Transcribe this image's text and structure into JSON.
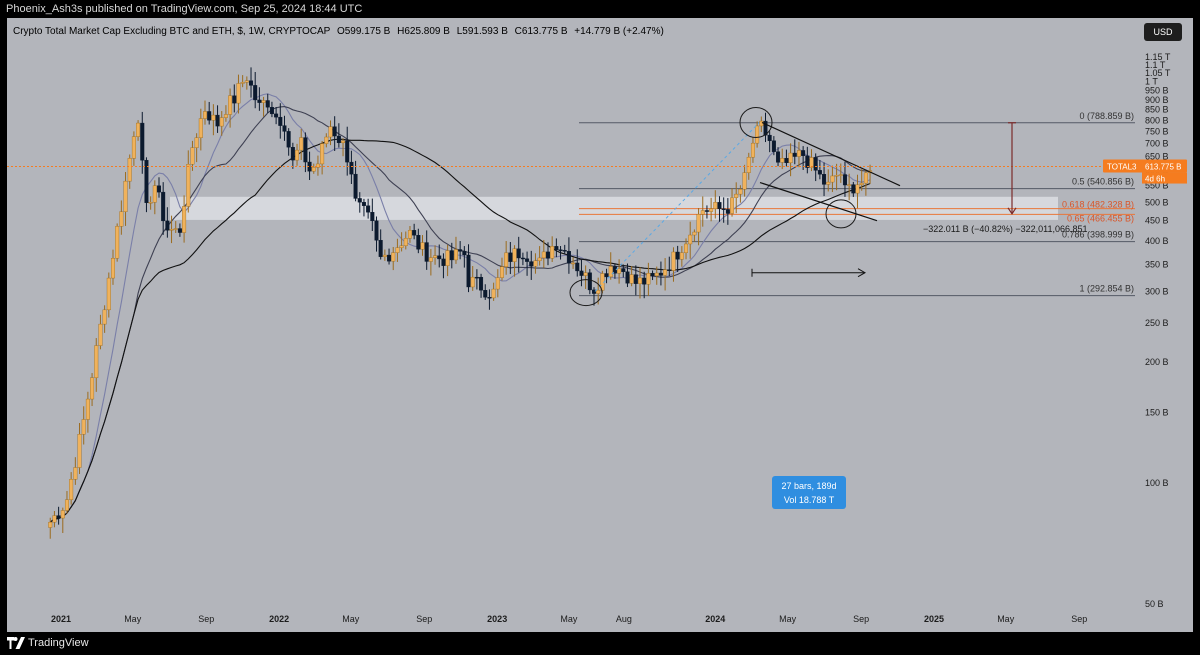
{
  "header": {
    "publish_line": "Phoenix_Ash3s published on TradingView.com, Sep 25, 2024 18:44 UTC"
  },
  "symbol": {
    "title": "Crypto Total Market Cap Excluding BTC and ETH, $, 1W, CRYPTOCAP",
    "open": "O599.175 B",
    "high": "H625.809 B",
    "low": "L591.593 B",
    "close": "C613.775 B",
    "change": "+14.779 B (+2.47%)"
  },
  "currency_button": "USD",
  "footer": {
    "brand": "TradingView"
  },
  "colors": {
    "background": "#b3b5bb",
    "bull": "#f0b25c",
    "bear": "#0c1a2e",
    "price_line": "#f57c1f",
    "measure_box": "#2f8ee0"
  },
  "chart_data": {
    "type": "candlestick",
    "title": "Crypto Total Market Cap Excluding BTC and ETH, $, 1W, CRYPTOCAP",
    "y_scale": "log",
    "ylim": [
      "50 B",
      "1.15 T"
    ],
    "y_tick_labels": [
      "1.15 T",
      "1.1 T",
      "1.05 T",
      "1 T",
      "950 B",
      "900 B",
      "850 B",
      "800 B",
      "750 B",
      "700 B",
      "650 B",
      "600 B",
      "550 B",
      "500 B",
      "450 B",
      "400 B",
      "350 B",
      "300 B",
      "250 B",
      "200 B",
      "150 B",
      "100 B",
      "50 B"
    ],
    "y_tick_values": [
      1150,
      1100,
      1050,
      1000,
      950,
      900,
      850,
      800,
      750,
      700,
      650,
      600,
      550,
      500,
      450,
      400,
      350,
      300,
      250,
      200,
      150,
      100,
      50
    ],
    "x_tick_labels": [
      "2021",
      "May",
      "Sep",
      "2022",
      "May",
      "Sep",
      "2023",
      "May",
      "Aug",
      "2024",
      "May",
      "Sep",
      "2025",
      "May",
      "Sep"
    ],
    "x_tick_bold": [
      true,
      false,
      false,
      true,
      false,
      false,
      true,
      false,
      false,
      true,
      false,
      false,
      true,
      false,
      false
    ],
    "x_tick_dates": [
      "2021-01-01",
      "2021-05-01",
      "2021-09-01",
      "2022-01-01",
      "2022-05-01",
      "2022-09-01",
      "2023-01-01",
      "2023-05-01",
      "2023-08-01",
      "2024-01-01",
      "2024-05-01",
      "2024-09-01",
      "2025-01-01",
      "2025-05-01",
      "2025-09-01"
    ],
    "anchors": [
      {
        "date": "2020-12-14",
        "value": 80
      },
      {
        "date": "2021-01-10",
        "value": 90
      },
      {
        "date": "2021-02-07",
        "value": 140
      },
      {
        "date": "2021-03-07",
        "value": 240
      },
      {
        "date": "2021-04-04",
        "value": 420
      },
      {
        "date": "2021-04-25",
        "value": 630
      },
      {
        "date": "2021-05-09",
        "value": 860
      },
      {
        "date": "2021-05-23",
        "value": 470
      },
      {
        "date": "2021-06-06",
        "value": 560
      },
      {
        "date": "2021-06-27",
        "value": 430
      },
      {
        "date": "2021-07-18",
        "value": 420
      },
      {
        "date": "2021-08-08",
        "value": 680
      },
      {
        "date": "2021-08-29",
        "value": 860
      },
      {
        "date": "2021-09-19",
        "value": 780
      },
      {
        "date": "2021-10-03",
        "value": 860
      },
      {
        "date": "2021-10-17",
        "value": 900
      },
      {
        "date": "2021-11-07",
        "value": 1040
      },
      {
        "date": "2021-11-28",
        "value": 860
      },
      {
        "date": "2021-12-12",
        "value": 900
      },
      {
        "date": "2021-12-26",
        "value": 820
      },
      {
        "date": "2022-01-09",
        "value": 800
      },
      {
        "date": "2022-01-23",
        "value": 620
      },
      {
        "date": "2022-02-06",
        "value": 700
      },
      {
        "date": "2022-02-20",
        "value": 600
      },
      {
        "date": "2022-03-06",
        "value": 620
      },
      {
        "date": "2022-03-27",
        "value": 780
      },
      {
        "date": "2022-04-17",
        "value": 700
      },
      {
        "date": "2022-05-01",
        "value": 620
      },
      {
        "date": "2022-05-08",
        "value": 500
      },
      {
        "date": "2022-05-22",
        "value": 470
      },
      {
        "date": "2022-06-05",
        "value": 440
      },
      {
        "date": "2022-06-19",
        "value": 360
      },
      {
        "date": "2022-07-10",
        "value": 380
      },
      {
        "date": "2022-08-07",
        "value": 420
      },
      {
        "date": "2022-08-28",
        "value": 380
      },
      {
        "date": "2022-09-18",
        "value": 365
      },
      {
        "date": "2022-10-16",
        "value": 360
      },
      {
        "date": "2022-11-06",
        "value": 380
      },
      {
        "date": "2022-11-13",
        "value": 320
      },
      {
        "date": "2022-12-04",
        "value": 310
      },
      {
        "date": "2022-12-25",
        "value": 295
      },
      {
        "date": "2023-01-15",
        "value": 360
      },
      {
        "date": "2023-02-12",
        "value": 380
      },
      {
        "date": "2023-03-12",
        "value": 350
      },
      {
        "date": "2023-04-09",
        "value": 400
      },
      {
        "date": "2023-05-07",
        "value": 360
      },
      {
        "date": "2023-06-11",
        "value": 305
      },
      {
        "date": "2023-07-09",
        "value": 350
      },
      {
        "date": "2023-07-30",
        "value": 340
      },
      {
        "date": "2023-08-20",
        "value": 315
      },
      {
        "date": "2023-09-17",
        "value": 320
      },
      {
        "date": "2023-10-22",
        "value": 360
      },
      {
        "date": "2023-11-19",
        "value": 420
      },
      {
        "date": "2023-12-10",
        "value": 480
      },
      {
        "date": "2024-01-07",
        "value": 480
      },
      {
        "date": "2024-01-28",
        "value": 490
      },
      {
        "date": "2024-02-18",
        "value": 560
      },
      {
        "date": "2024-03-03",
        "value": 700
      },
      {
        "date": "2024-03-17",
        "value": 770
      },
      {
        "date": "2024-03-31",
        "value": 720
      },
      {
        "date": "2024-04-14",
        "value": 610
      },
      {
        "date": "2024-05-05",
        "value": 630
      },
      {
        "date": "2024-05-26",
        "value": 660
      },
      {
        "date": "2024-06-16",
        "value": 600
      },
      {
        "date": "2024-07-07",
        "value": 545
      },
      {
        "date": "2024-07-28",
        "value": 600
      },
      {
        "date": "2024-08-04",
        "value": 530
      },
      {
        "date": "2024-08-25",
        "value": 560
      },
      {
        "date": "2024-09-08",
        "value": 560
      },
      {
        "date": "2024-09-22",
        "value": 613.775
      }
    ],
    "moving_averages": [
      {
        "window": 10,
        "color": "#7a7fa8"
      },
      {
        "window": 21,
        "color": "#3e4052"
      },
      {
        "window": 50,
        "color": "#111111"
      }
    ],
    "fib_levels": [
      {
        "ratio": "0",
        "label": "0 (788.859 B)",
        "value": 788.859
      },
      {
        "ratio": "0.5",
        "label": "0.5 (540.856 B)",
        "value": 540.856
      },
      {
        "ratio": "0.618",
        "label": "0.618 (482.328 B)",
        "value": 482.328
      },
      {
        "ratio": "0.65",
        "label": "0.65 (466.455 B)",
        "value": 466.455
      },
      {
        "ratio": "0.786",
        "label": "0.786 (398.999 B)",
        "value": 398.999
      },
      {
        "ratio": "1",
        "label": "1 (292.854 B)",
        "value": 292.854
      }
    ],
    "support_zone": {
      "low": 452,
      "high": 516
    },
    "price_marker": {
      "symbol": "TOTAL3",
      "value_label": "613.775 B",
      "countdown": "4d 6h",
      "value": 613.775
    },
    "measure_label": "−322.011 B (−40.82%) −322,011,066,851",
    "range_box": {
      "line1": "27 bars, 189d",
      "line2": "Vol 18.788 T"
    }
  }
}
